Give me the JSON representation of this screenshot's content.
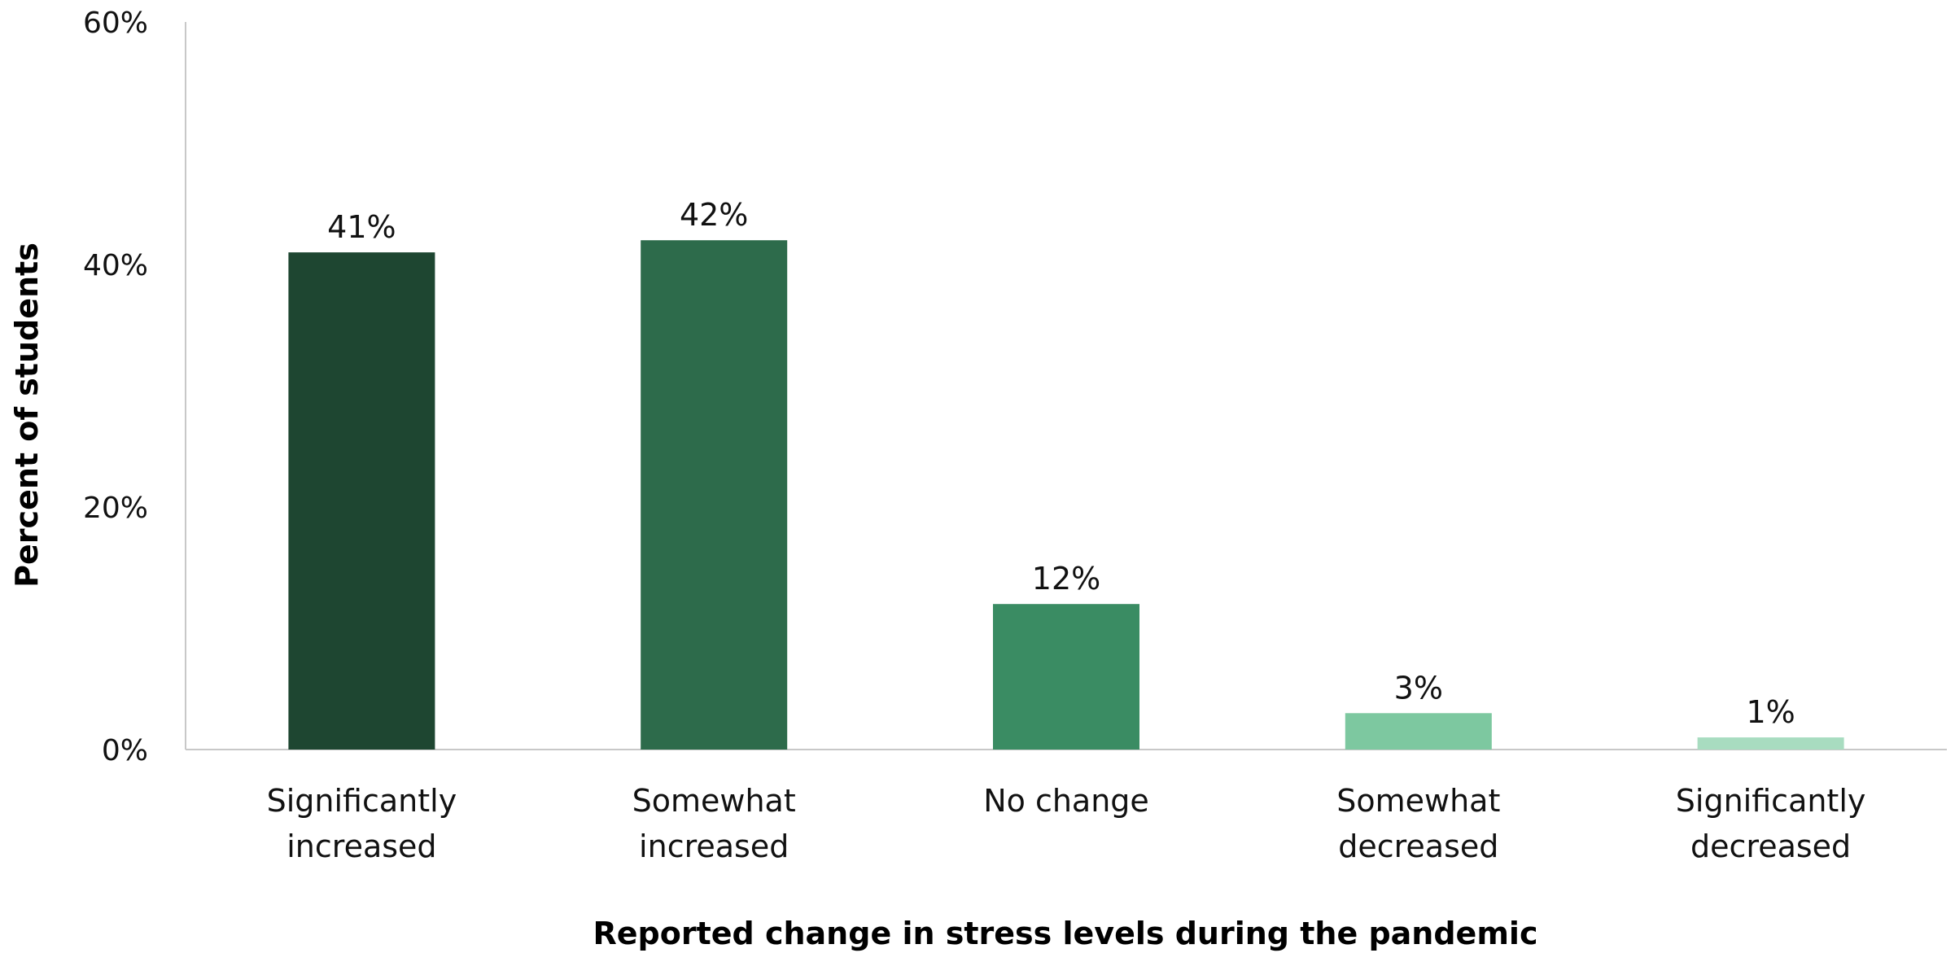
{
  "chart_data": {
    "type": "bar",
    "categories": [
      [
        "Significantly",
        "increased"
      ],
      [
        "Somewhat",
        "increased"
      ],
      [
        "No change"
      ],
      [
        "Somewhat",
        "decreased"
      ],
      [
        "Significantly",
        "decreased"
      ]
    ],
    "values": [
      41,
      42,
      12,
      3,
      1
    ],
    "data_labels": [
      "41%",
      "42%",
      "12%",
      "3%",
      "1%"
    ],
    "colors": [
      "#1e4631",
      "#2d6b4b",
      "#3a8c63",
      "#7dc8a0",
      "#a8dcc0"
    ],
    "title": "",
    "xlabel": "Reported change in stress levels during the pandemic",
    "ylabel": "Percent of students",
    "ylim": [
      0,
      60
    ],
    "y_ticks": [
      0,
      20,
      40,
      60
    ],
    "y_tick_labels": [
      "0%",
      "20%",
      "40%",
      "60%"
    ],
    "grid": false,
    "legend": "none"
  }
}
